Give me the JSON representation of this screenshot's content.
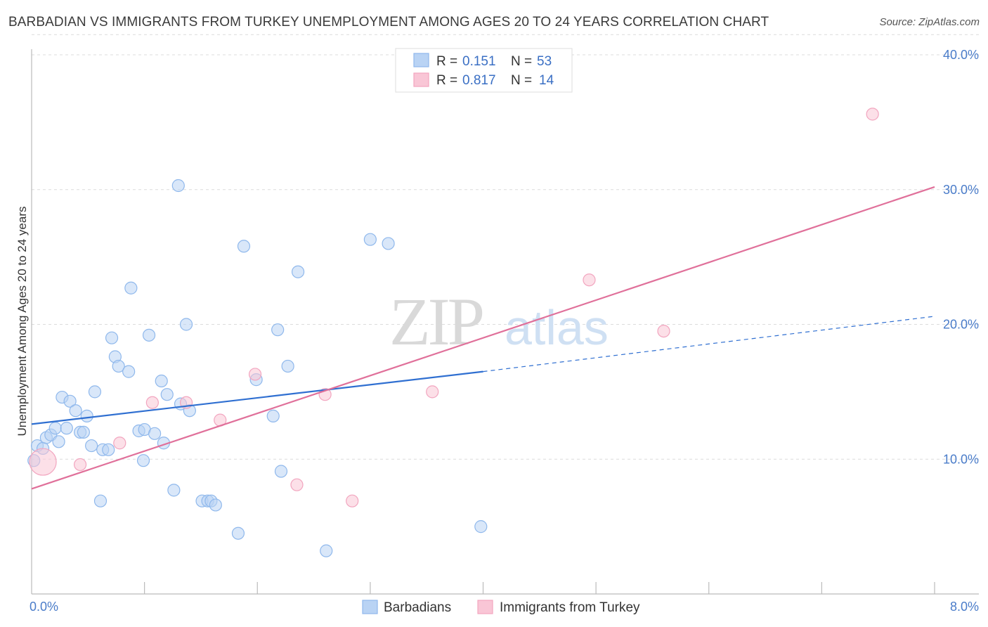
{
  "title": "BARBADIAN VS IMMIGRANTS FROM TURKEY UNEMPLOYMENT AMONG AGES 20 TO 24 YEARS CORRELATION CHART",
  "source": "Source: ZipAtlas.com",
  "watermark": {
    "zip": "ZIP",
    "atlas": "atlas"
  },
  "chart_data": {
    "type": "scatter",
    "title": "BARBADIAN VS IMMIGRANTS FROM TURKEY UNEMPLOYMENT AMONG AGES 20 TO 24 YEARS CORRELATION CHART",
    "xlabel": "",
    "ylabel": "Unemployment Among Ages 20 to 24 years",
    "xlim": [
      0,
      8
    ],
    "ylim": [
      0,
      40
    ],
    "x_tick_labels": [
      "0.0%",
      "8.0%"
    ],
    "y_ticks": [
      10,
      20,
      30,
      40
    ],
    "y_tick_labels": [
      "10.0%",
      "20.0%",
      "30.0%",
      "40.0%"
    ],
    "grid": true,
    "legend_position": "top-center",
    "series": [
      {
        "name": "Barbadians",
        "color": "#8fb8ec",
        "line_color": "#2f6fd1",
        "R": "0.151",
        "N": "53",
        "trend": {
          "x": [
            0,
            4.0
          ],
          "y": [
            12.6,
            16.5
          ],
          "dashed_to": [
            8.0,
            20.6
          ]
        },
        "points": [
          [
            0.02,
            9.9
          ],
          [
            0.05,
            11.0
          ],
          [
            0.1,
            10.8
          ],
          [
            0.13,
            11.6
          ],
          [
            0.17,
            11.8
          ],
          [
            0.21,
            12.3
          ],
          [
            0.24,
            11.3
          ],
          [
            0.27,
            14.6
          ],
          [
            0.31,
            12.3
          ],
          [
            0.34,
            14.3
          ],
          [
            0.39,
            13.6
          ],
          [
            0.43,
            12.0
          ],
          [
            0.46,
            12.0
          ],
          [
            0.49,
            13.2
          ],
          [
            0.53,
            11.0
          ],
          [
            0.56,
            15.0
          ],
          [
            0.61,
            6.9
          ],
          [
            0.63,
            10.7
          ],
          [
            0.68,
            10.7
          ],
          [
            0.71,
            19.0
          ],
          [
            0.74,
            17.6
          ],
          [
            0.77,
            16.9
          ],
          [
            0.86,
            16.5
          ],
          [
            0.88,
            22.7
          ],
          [
            0.95,
            12.1
          ],
          [
            0.99,
            9.9
          ],
          [
            1.0,
            12.2
          ],
          [
            1.04,
            19.2
          ],
          [
            1.09,
            11.9
          ],
          [
            1.15,
            15.8
          ],
          [
            1.17,
            11.2
          ],
          [
            1.2,
            14.8
          ],
          [
            1.26,
            7.7
          ],
          [
            1.3,
            30.3
          ],
          [
            1.32,
            14.1
          ],
          [
            1.37,
            20.0
          ],
          [
            1.4,
            13.6
          ],
          [
            1.51,
            6.9
          ],
          [
            1.56,
            6.9
          ],
          [
            1.59,
            6.9
          ],
          [
            1.63,
            6.6
          ],
          [
            1.83,
            4.5
          ],
          [
            1.88,
            25.8
          ],
          [
            1.99,
            15.9
          ],
          [
            2.14,
            13.2
          ],
          [
            2.18,
            19.6
          ],
          [
            2.21,
            9.1
          ],
          [
            2.27,
            16.9
          ],
          [
            2.36,
            23.9
          ],
          [
            2.61,
            3.2
          ],
          [
            3.0,
            26.3
          ],
          [
            3.16,
            26.0
          ],
          [
            3.98,
            5.0
          ]
        ]
      },
      {
        "name": "Immigrants from Turkey",
        "color": "#f2a5bf",
        "line_color": "#e0709a",
        "R": "0.817",
        "N": "14",
        "trend": {
          "x": [
            0,
            8.0
          ],
          "y": [
            7.8,
            30.2
          ]
        },
        "points": [
          [
            0.1,
            9.8
          ],
          [
            0.43,
            9.6
          ],
          [
            0.78,
            11.2
          ],
          [
            1.07,
            14.2
          ],
          [
            1.37,
            14.2
          ],
          [
            1.67,
            12.9
          ],
          [
            1.98,
            16.3
          ],
          [
            2.35,
            8.1
          ],
          [
            2.6,
            14.8
          ],
          [
            2.84,
            6.9
          ],
          [
            3.55,
            15.0
          ],
          [
            4.94,
            23.3
          ],
          [
            5.6,
            19.5
          ],
          [
            7.45,
            35.6
          ]
        ]
      }
    ]
  }
}
